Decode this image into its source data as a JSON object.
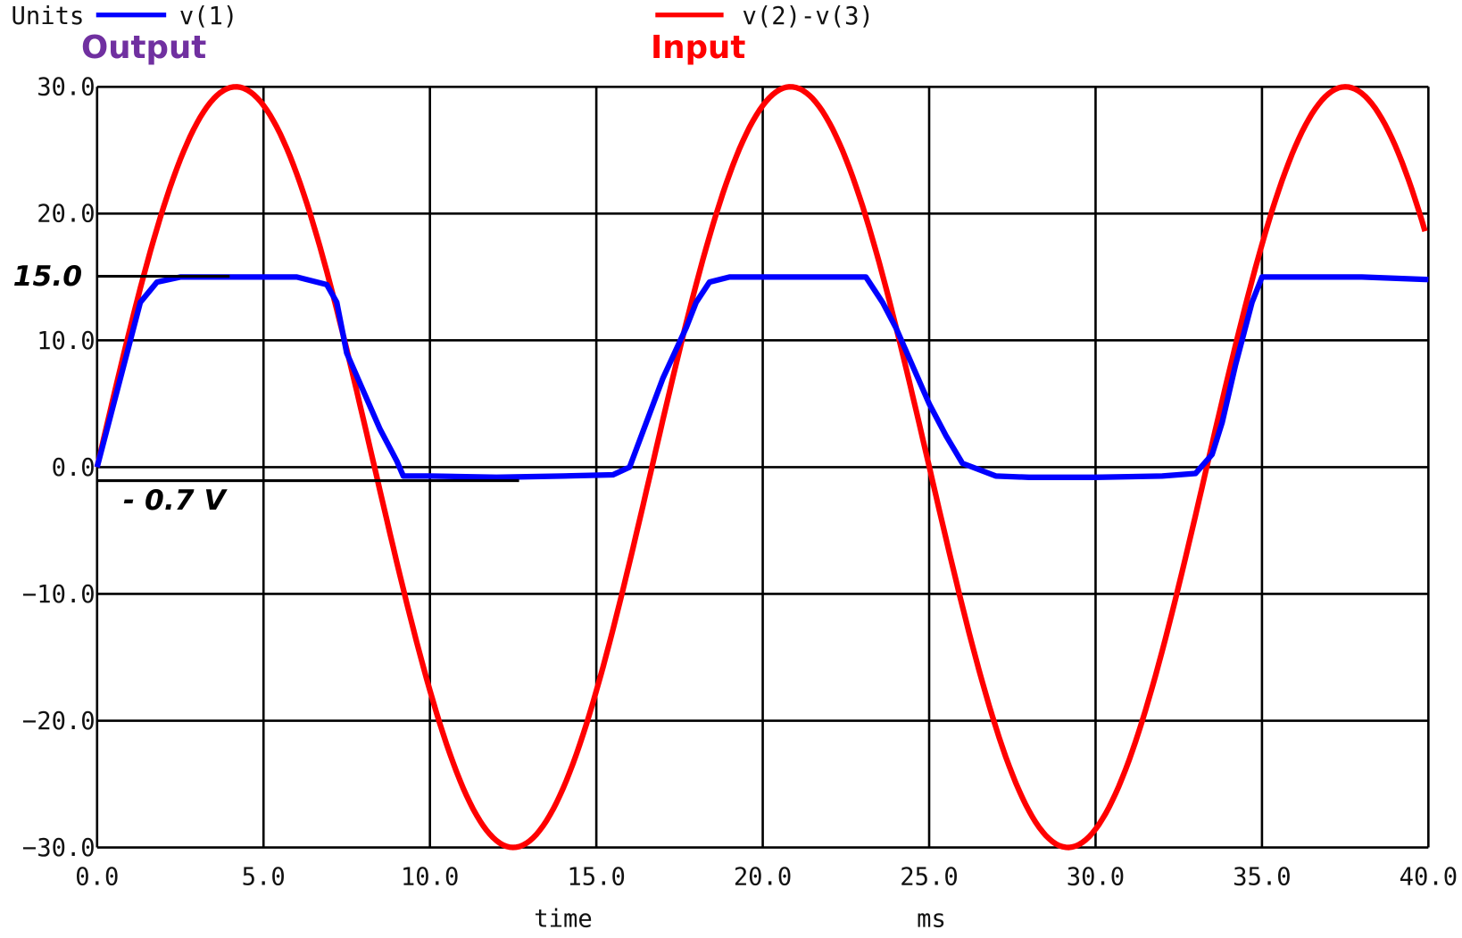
{
  "chart_data": {
    "type": "line",
    "title": "",
    "units_label": "Units",
    "xlabel": "time",
    "xunit": "ms",
    "ylabel": "",
    "xlim": [
      0,
      40
    ],
    "ylim": [
      -30,
      30
    ],
    "grid": true,
    "legend_position": "top",
    "x_ticks": [
      "0.0",
      "5.0",
      "10.0",
      "15.0",
      "20.0",
      "25.0",
      "30.0",
      "35.0",
      "40.0"
    ],
    "y_ticks": [
      "30.0",
      "20.0",
      "10.0",
      "0.0",
      "-10.0",
      "-20.0",
      "-30.0"
    ],
    "series": [
      {
        "name": "v(1)",
        "role": "Output",
        "color": "#0000ff",
        "x": [
          0,
          1.3,
          1.8,
          2.5,
          4,
          5,
          6,
          6.9,
          7.2,
          7.5,
          8.0,
          8.5,
          9.0,
          9.2,
          10,
          12,
          14,
          15.5,
          16.0,
          17.0,
          17.7,
          18.0,
          18.4,
          19.0,
          20,
          22,
          23.1,
          23.6,
          24.0,
          24.5,
          25.0,
          25.5,
          26.0,
          27,
          28,
          30,
          32,
          33.0,
          33.5,
          33.8,
          34.2,
          34.7,
          35.0,
          36,
          38,
          40
        ],
        "y": [
          0,
          13,
          14.6,
          15,
          15,
          15,
          15,
          14.4,
          13,
          9,
          6,
          3,
          0.5,
          -0.7,
          -0.7,
          -0.8,
          -0.7,
          -0.6,
          0,
          7,
          11,
          13,
          14.6,
          15,
          15,
          15,
          15,
          13,
          11,
          8,
          5,
          2.5,
          0.3,
          -0.7,
          -0.8,
          -0.8,
          -0.7,
          -0.5,
          1,
          3.5,
          8,
          13,
          15,
          15,
          15,
          14.8
        ]
      },
      {
        "name": "v(2)-v(3)",
        "role": "Input",
        "color": "#ff0000",
        "amplitude": 30,
        "period_ms": 16.67,
        "x": [
          0,
          2,
          4.1,
          6,
          8.3,
          10,
          12.4,
          14,
          16.7,
          18.5,
          20.8,
          23,
          25,
          27,
          29.2,
          31,
          33.3,
          35.5,
          37.5,
          39,
          40
        ],
        "y": [
          0,
          20.6,
          30,
          20.6,
          0,
          -20,
          -30,
          -23,
          0,
          18,
          30,
          20.5,
          1,
          -19,
          -30,
          -24,
          0,
          21,
          30,
          22,
          17.5
        ]
      }
    ],
    "annotations": [
      {
        "text": "15.0",
        "y": 15,
        "x_end_ms": 4,
        "style": "bold-italic"
      },
      {
        "text": "- 0.7 V",
        "y": -0.7,
        "x_end_ms": 12.6,
        "style": "bold-italic"
      }
    ]
  },
  "legend": {
    "units": "Units",
    "series1_name": "v(1)",
    "series1_role": "Output",
    "series2_name": "v(2)-v(3)",
    "series2_role": "Input"
  },
  "axes": {
    "xlabel": "time",
    "xunit": "ms",
    "x_ticks": [
      "0.0",
      "5.0",
      "10.0",
      "15.0",
      "20.0",
      "25.0",
      "30.0",
      "35.0",
      "40.0"
    ],
    "y_ticks": [
      "30.0",
      "20.0",
      "10.0",
      "0.0",
      "-10.0",
      "-20.0",
      "-30.0"
    ]
  },
  "annotations": {
    "clip_high": "15.0",
    "clip_low": "- 0.7 V"
  },
  "colors": {
    "output": "#0000ff",
    "input": "#ff0000",
    "output_label": "#7030a0",
    "input_label": "#ff0000",
    "grid": "#000000"
  }
}
